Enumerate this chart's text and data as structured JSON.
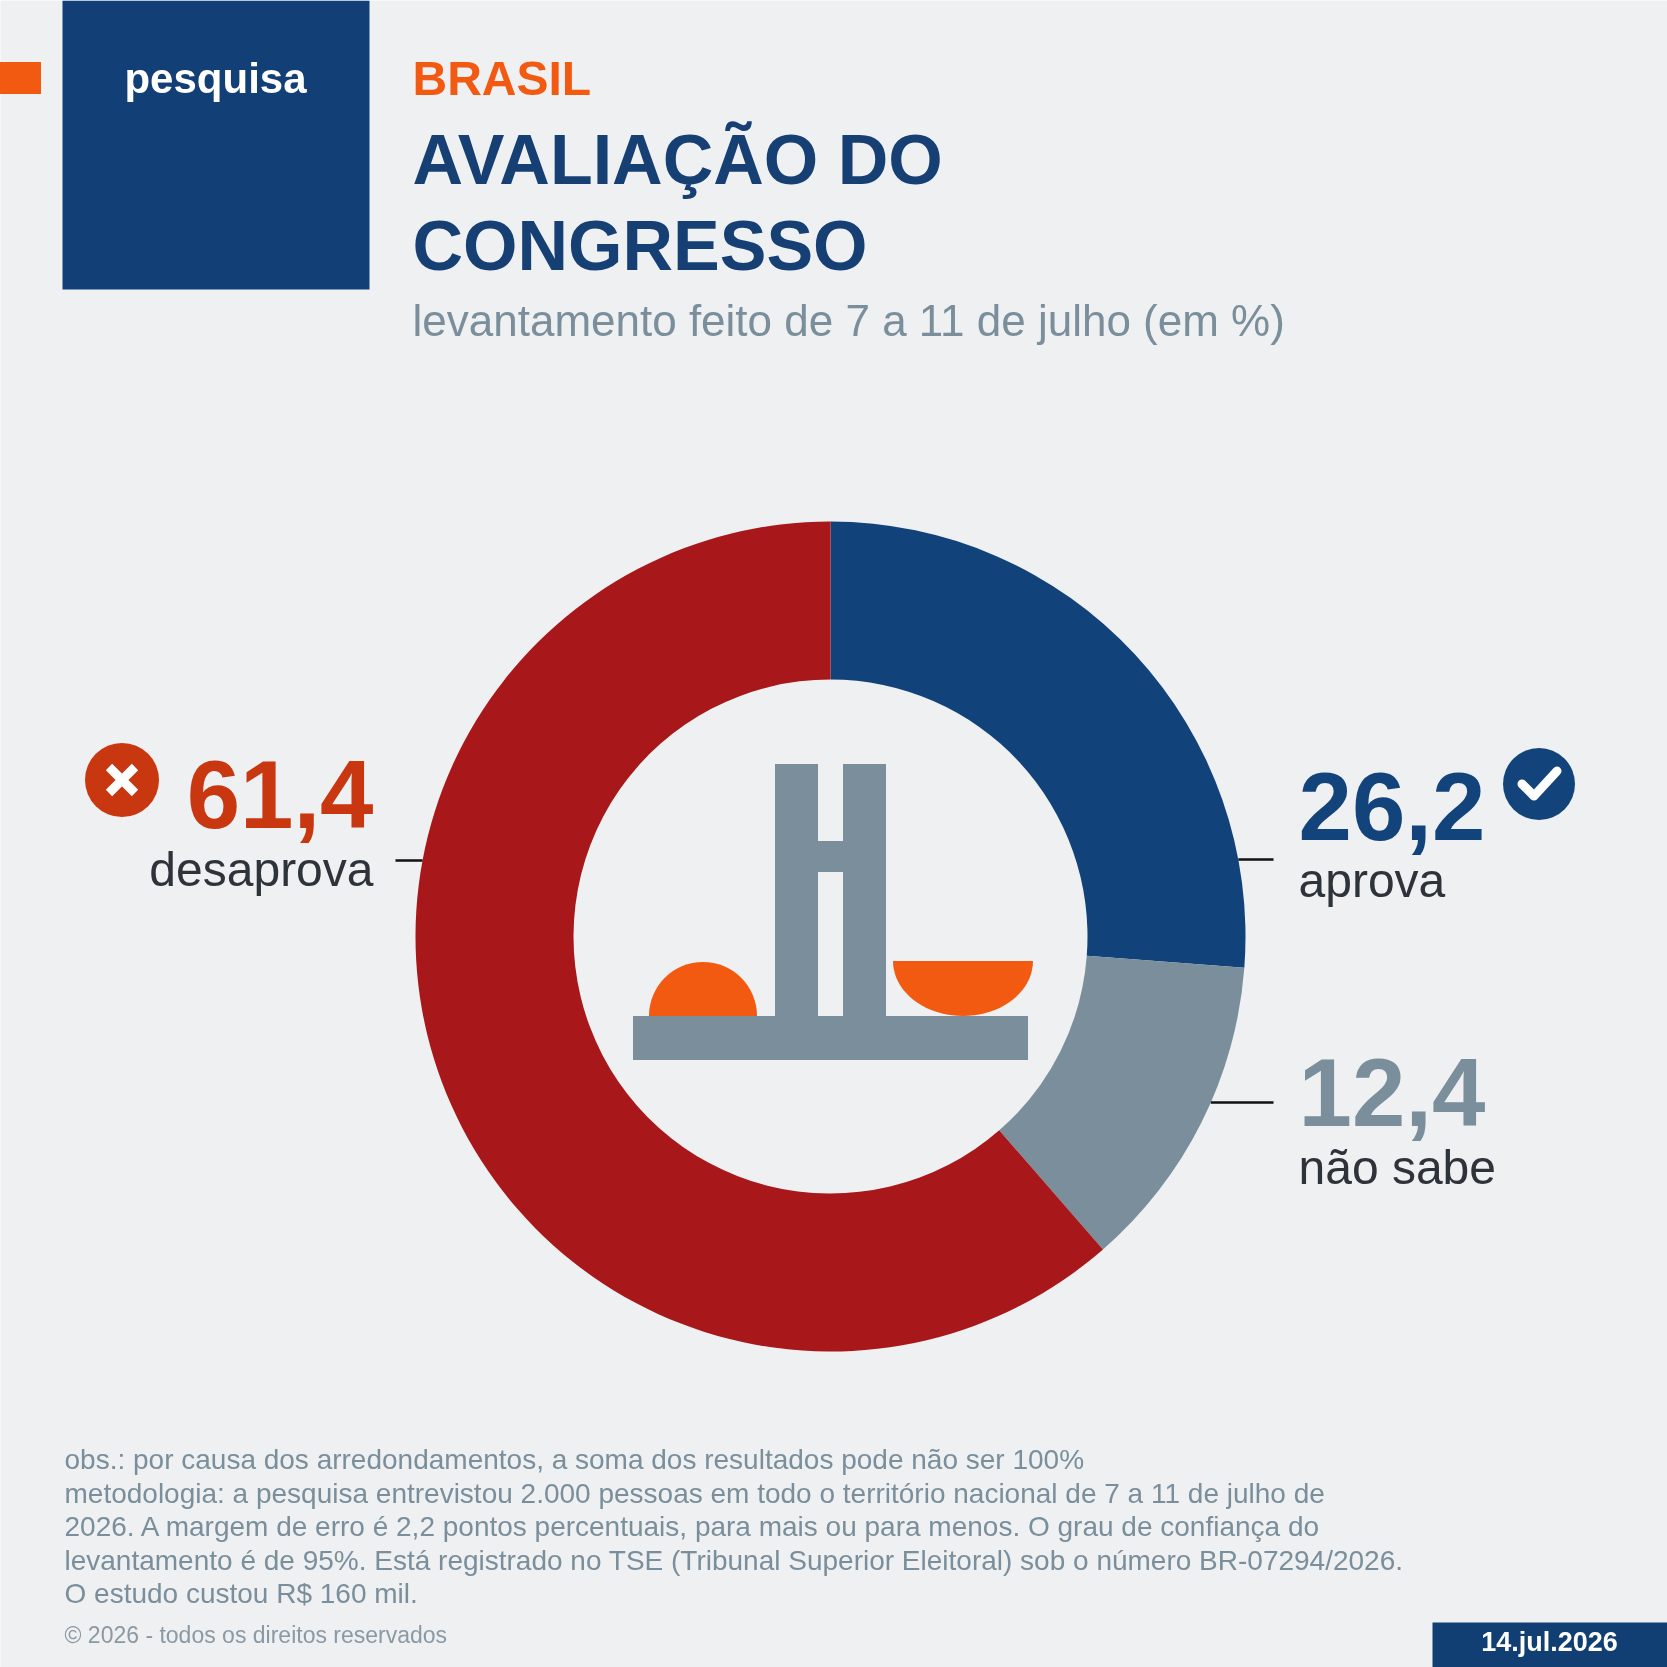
{
  "chart_data": {
    "type": "donut",
    "title": "AVALIAÇÃO DO CONGRESSO",
    "subtitle": "levantamento feito de 7 a 11 de julho (em %)",
    "categories": [
      "aprova",
      "não sabe",
      "desaprova"
    ],
    "values": [
      26.2,
      12.4,
      61.4
    ],
    "colors": [
      "#12427a",
      "#7a8e9b",
      "#a8171a"
    ],
    "value_labels": [
      "26,2",
      "12,4",
      "61,4"
    ],
    "annotations": [
      "BRASIL",
      "pesquisa",
      "obs.: por causa dos arredondamentos, a soma dos resultados pode não ser 100%",
      "metodologia: a pesquisa entrevistou 2.000 pessoas em todo o território nacional de 7 a 11 de julho de 2026. A margem de erro é 2,2 pontos percentuais, para mais ou para menos. O grau de confiança do levantamento é de 95%. Está registrado no TSE (Tribunal Superior Eleitoral) sob o número BR-07294/2026. O estudo custou R$ 160 mil.",
      "© 2026 - todos os direitos reservados",
      "14.jul.2026"
    ]
  }
}
